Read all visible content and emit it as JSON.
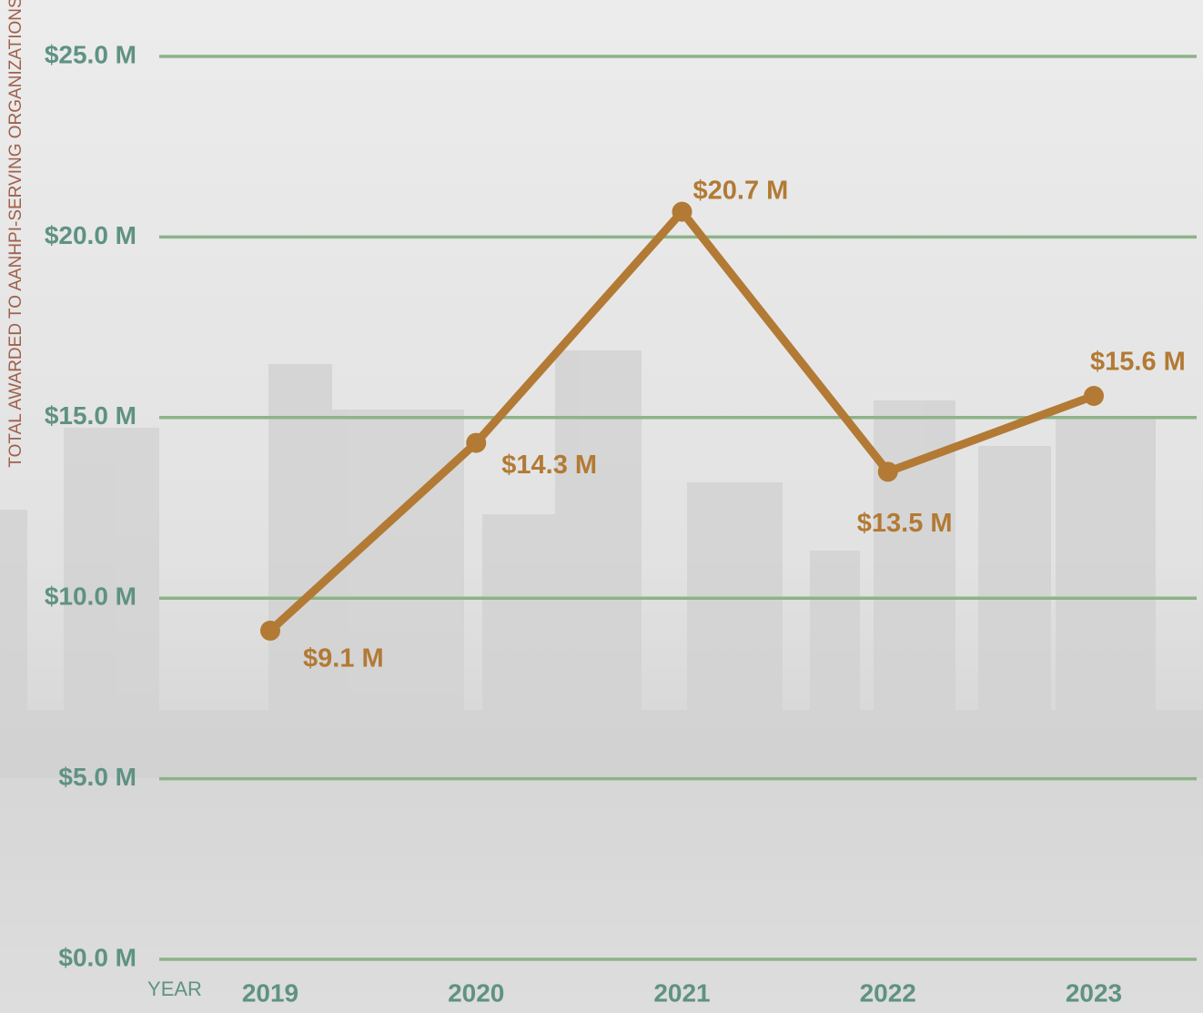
{
  "chart_data": {
    "type": "line",
    "y_axis_label": "TOTAL AWARDED TO AANHPI-SERVING ORGANIZATIONS",
    "x_axis_label": "YEAR",
    "categories": [
      "2019",
      "2020",
      "2021",
      "2022",
      "2023"
    ],
    "series": [
      {
        "color": "#b27a34",
        "values": [
          9.1,
          14.3,
          20.7,
          13.5,
          15.6
        ],
        "value_labels": [
          "$9.1 M",
          "$14.3 M",
          "$20.7 M",
          "$13.5 M",
          "$15.6 M"
        ]
      }
    ],
    "ylim": [
      0,
      25
    ],
    "yticks": [
      {
        "value": 0,
        "label": "$0.0 M"
      },
      {
        "value": 5,
        "label": "$5.0 M"
      },
      {
        "value": 10,
        "label": "$10.0 M"
      },
      {
        "value": 15,
        "label": "$15.0 M"
      },
      {
        "value": 20,
        "label": "$20.0 M"
      },
      {
        "value": 25,
        "label": "$25.0 M"
      }
    ],
    "grid": true,
    "grid_color": "#8db387"
  }
}
